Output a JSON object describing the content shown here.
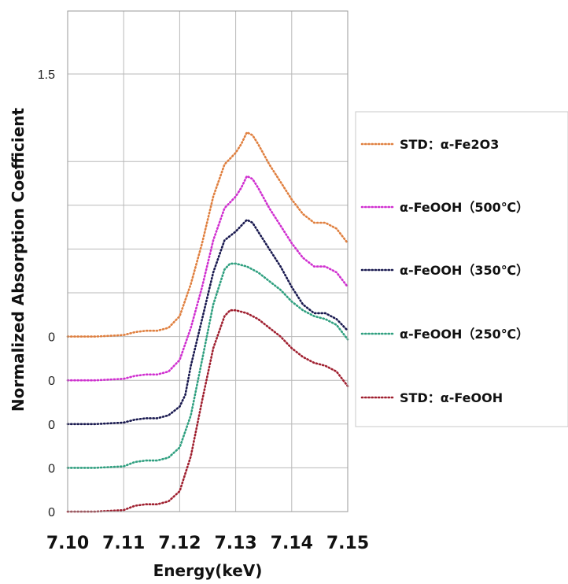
{
  "chart_data": {
    "type": "line",
    "title": "",
    "xlabel": "Energy(keV)",
    "ylabel": "Normalized Absorption Coefficient",
    "xlim": [
      7.1,
      7.15
    ],
    "ylim": [
      0,
      1.5
    ],
    "x_ticks": [
      "7.10",
      "7.11",
      "7.12",
      "7.13",
      "7.14",
      "7.15"
    ],
    "y_ticks": [
      "0",
      "0",
      "0",
      "0",
      "0",
      "1.5"
    ],
    "grid": true,
    "legend_position": "right",
    "series": [
      {
        "name": "STD：α-Fe2O3",
        "color": "#e08040",
        "offset": 0.6,
        "x": [
          7.1,
          7.105,
          7.11,
          7.112,
          7.114,
          7.116,
          7.118,
          7.12,
          7.122,
          7.124,
          7.126,
          7.128,
          7.13,
          7.131,
          7.132,
          7.133,
          7.134,
          7.136,
          7.138,
          7.14,
          7.142,
          7.144,
          7.146,
          7.148,
          7.15
        ],
        "y": [
          0.6,
          0.6,
          0.605,
          0.615,
          0.62,
          0.62,
          0.63,
          0.67,
          0.78,
          0.92,
          1.08,
          1.19,
          1.23,
          1.26,
          1.3,
          1.29,
          1.26,
          1.19,
          1.13,
          1.07,
          1.02,
          0.99,
          0.99,
          0.97,
          0.92
        ]
      },
      {
        "name": "α-FeOOH（500℃）",
        "color": "#d030d0",
        "offset": 0.45,
        "x": [
          7.1,
          7.105,
          7.11,
          7.112,
          7.114,
          7.116,
          7.118,
          7.12,
          7.122,
          7.124,
          7.126,
          7.128,
          7.13,
          7.131,
          7.132,
          7.133,
          7.134,
          7.136,
          7.138,
          7.14,
          7.142,
          7.144,
          7.146,
          7.148,
          7.15
        ],
        "y": [
          0.45,
          0.45,
          0.455,
          0.465,
          0.47,
          0.47,
          0.48,
          0.52,
          0.63,
          0.77,
          0.93,
          1.04,
          1.08,
          1.11,
          1.15,
          1.14,
          1.11,
          1.04,
          0.98,
          0.92,
          0.87,
          0.84,
          0.84,
          0.82,
          0.77
        ]
      },
      {
        "name": "α-FeOOH（350℃）",
        "color": "#1a1a50",
        "offset": 0.3,
        "x": [
          7.1,
          7.105,
          7.11,
          7.112,
          7.114,
          7.116,
          7.118,
          7.12,
          7.121,
          7.122,
          7.124,
          7.126,
          7.128,
          7.13,
          7.131,
          7.132,
          7.133,
          7.134,
          7.136,
          7.138,
          7.14,
          7.142,
          7.144,
          7.146,
          7.148,
          7.15
        ],
        "y": [
          0.3,
          0.3,
          0.305,
          0.315,
          0.32,
          0.32,
          0.33,
          0.36,
          0.4,
          0.5,
          0.66,
          0.82,
          0.93,
          0.96,
          0.98,
          1.0,
          0.99,
          0.96,
          0.9,
          0.84,
          0.77,
          0.71,
          0.68,
          0.68,
          0.66,
          0.62
        ]
      },
      {
        "name": "α-FeOOH（250℃）",
        "color": "#30a080",
        "offset": 0.15,
        "x": [
          7.1,
          7.105,
          7.11,
          7.112,
          7.114,
          7.116,
          7.118,
          7.12,
          7.122,
          7.124,
          7.126,
          7.128,
          7.129,
          7.13,
          7.132,
          7.134,
          7.136,
          7.138,
          7.14,
          7.142,
          7.144,
          7.146,
          7.148,
          7.15
        ],
        "y": [
          0.15,
          0.15,
          0.155,
          0.17,
          0.175,
          0.175,
          0.185,
          0.22,
          0.33,
          0.52,
          0.71,
          0.83,
          0.85,
          0.85,
          0.84,
          0.82,
          0.79,
          0.76,
          0.72,
          0.69,
          0.67,
          0.66,
          0.64,
          0.59
        ]
      },
      {
        "name": "STD：α-FeOOH",
        "color": "#a02030",
        "offset": 0.0,
        "x": [
          7.1,
          7.105,
          7.11,
          7.112,
          7.114,
          7.116,
          7.118,
          7.12,
          7.122,
          7.124,
          7.126,
          7.128,
          7.129,
          7.13,
          7.132,
          7.134,
          7.136,
          7.138,
          7.14,
          7.142,
          7.144,
          7.146,
          7.148,
          7.15
        ],
        "y": [
          0.0,
          0.0,
          0.005,
          0.02,
          0.025,
          0.025,
          0.035,
          0.07,
          0.19,
          0.38,
          0.56,
          0.67,
          0.69,
          0.69,
          0.68,
          0.66,
          0.63,
          0.6,
          0.56,
          0.53,
          0.51,
          0.5,
          0.48,
          0.43
        ]
      }
    ]
  }
}
